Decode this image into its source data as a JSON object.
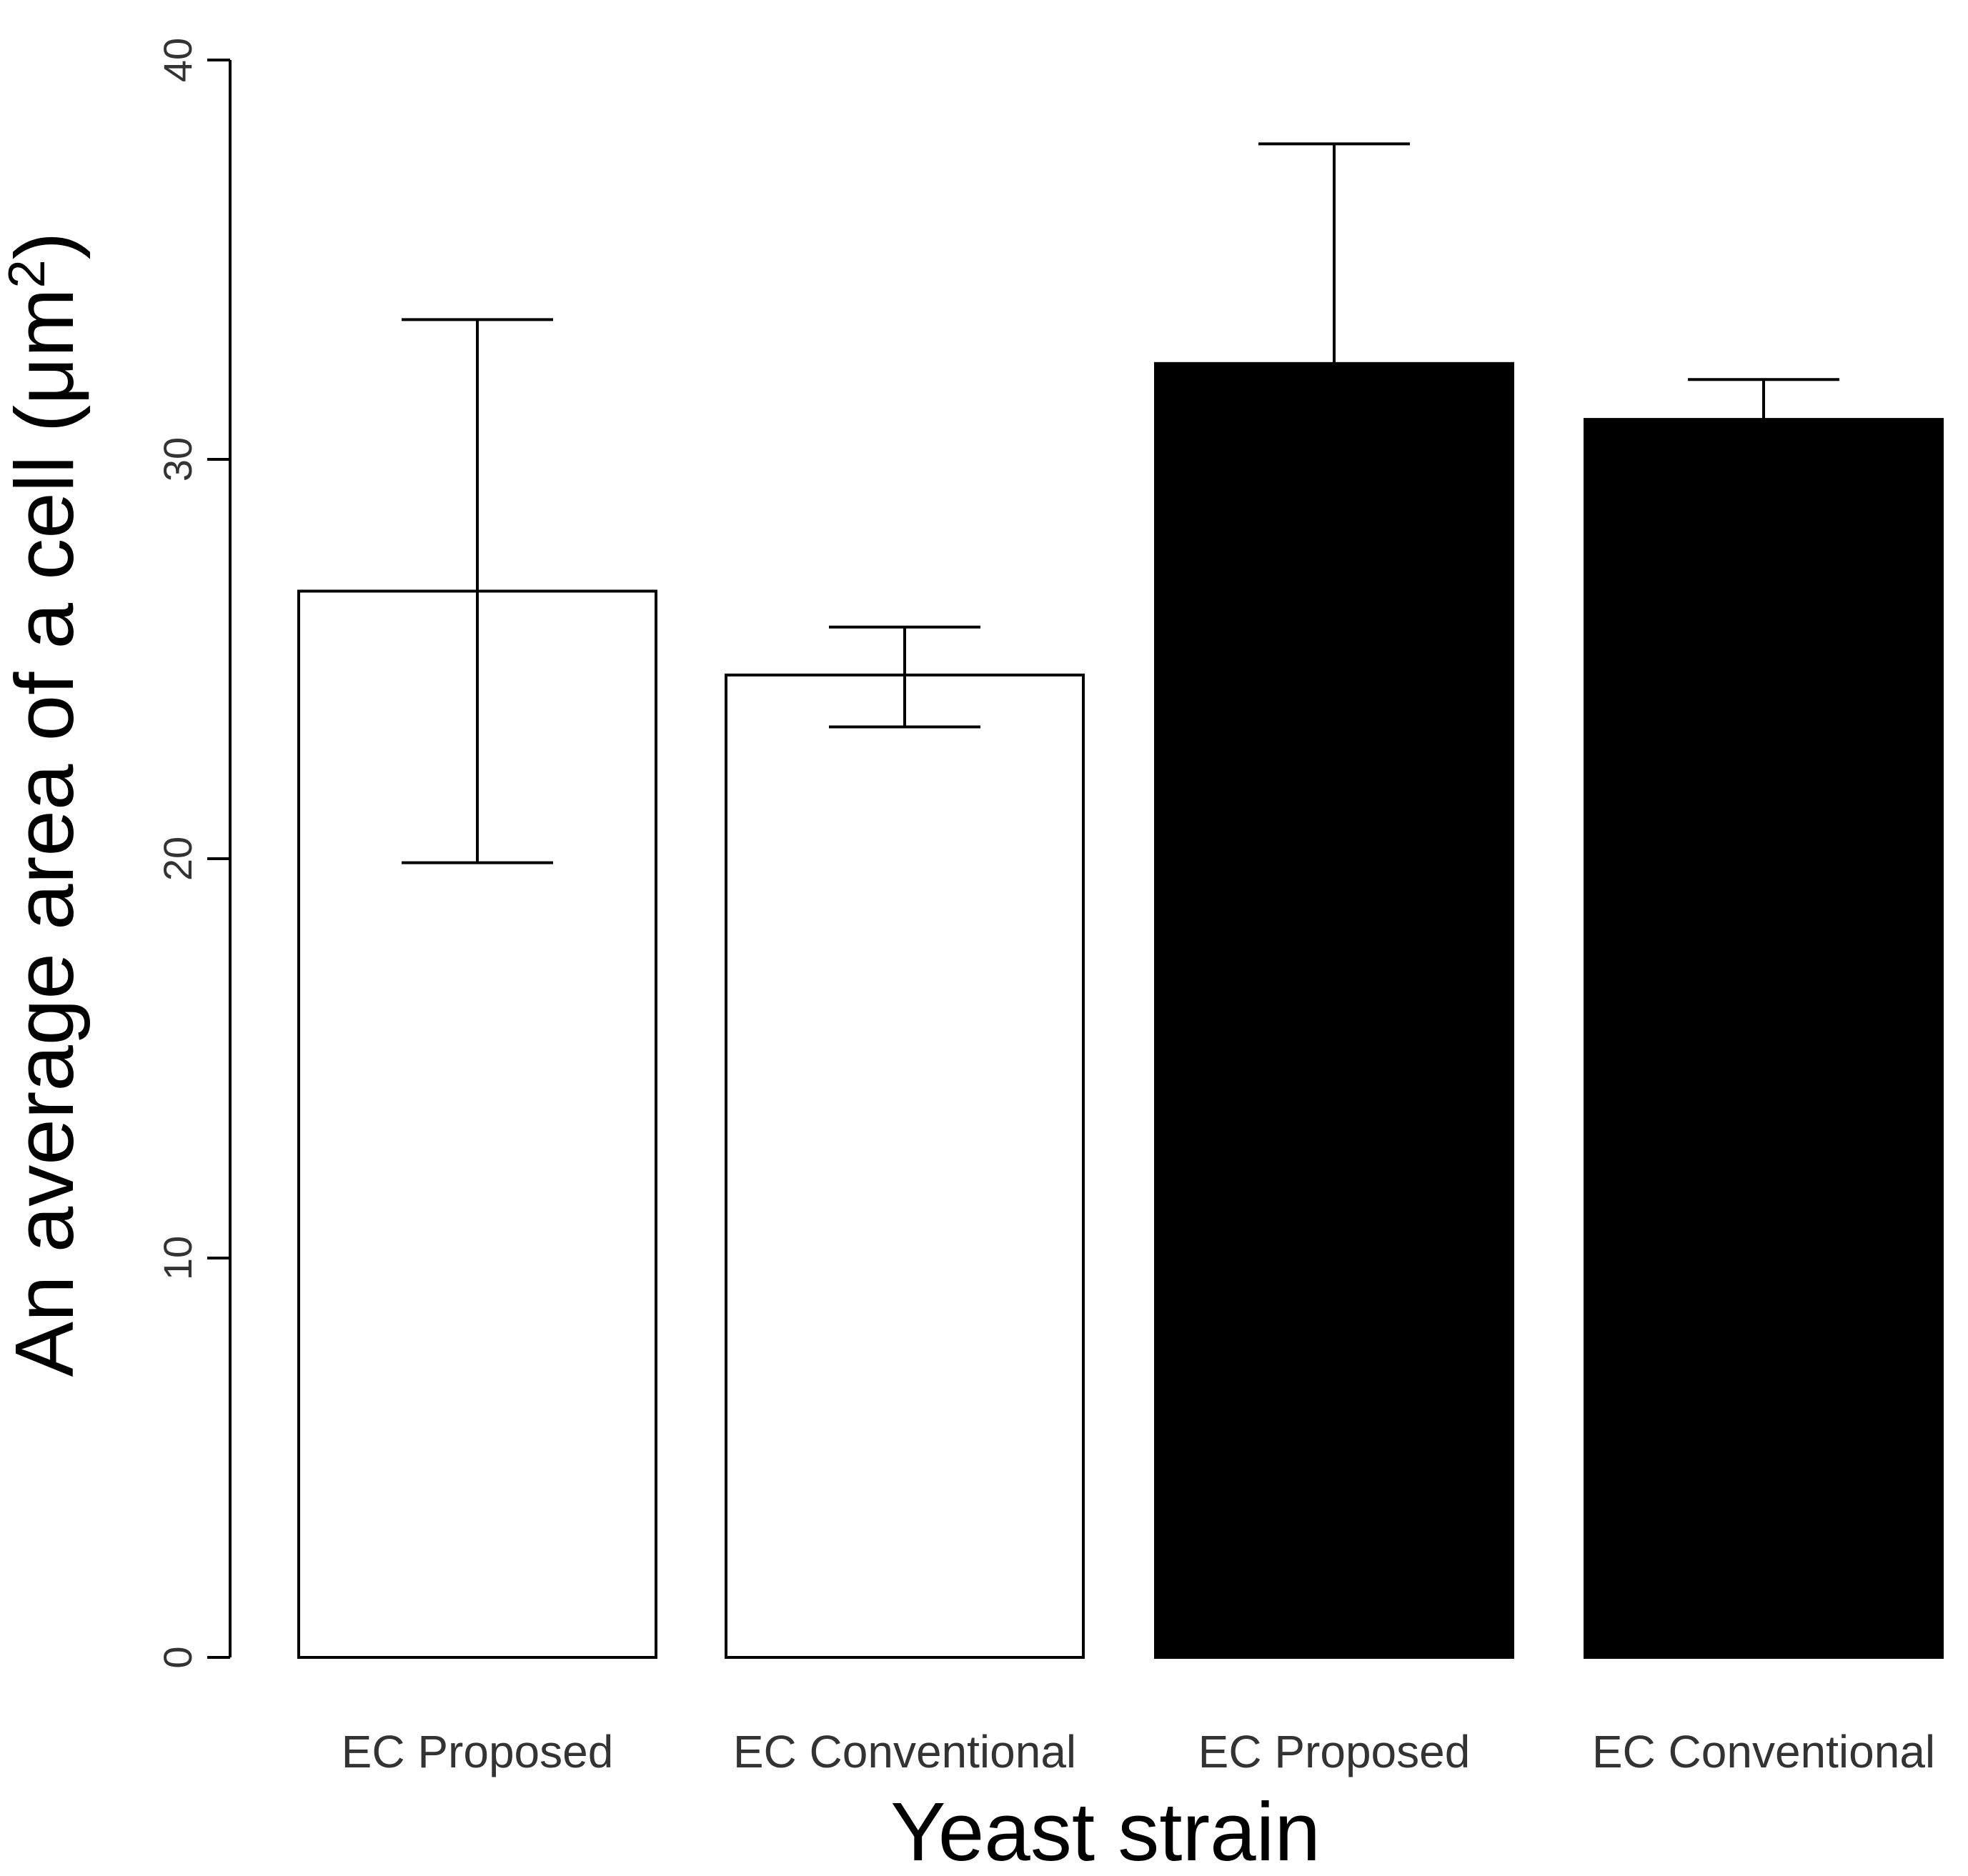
{
  "chart_data": {
    "type": "bar",
    "title": "",
    "xlabel": "Yeast strain",
    "ylabel_main": "An average area of a cell (",
    "ylabel_unit": "μm",
    "ylabel_sup": "2",
    "ylabel_close": ")",
    "ylim": [
      0,
      40
    ],
    "yticks": [
      "0",
      "10",
      "20",
      "30",
      "40"
    ],
    "grid": false,
    "categories": [
      "EC Proposed",
      "EC Conventional",
      "EC Proposed",
      "EC Conventional"
    ],
    "values": [
      26.7,
      24.6,
      32.4,
      31.0
    ],
    "error_upper": [
      33.5,
      25.8,
      37.9,
      32.0
    ],
    "error_lower": [
      19.9,
      23.3,
      null,
      null
    ],
    "fills": [
      "#ffffff",
      "#ffffff",
      "#000000",
      "#000000"
    ],
    "stroke": "#000000"
  }
}
